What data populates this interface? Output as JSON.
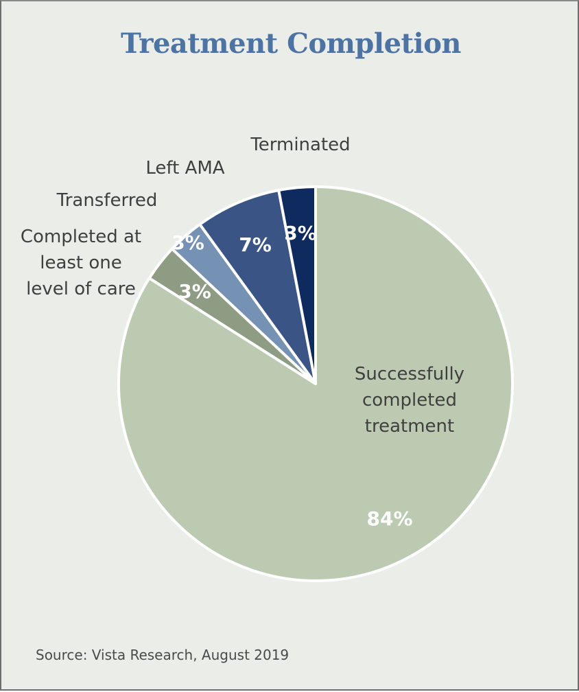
{
  "chart_data": {
    "type": "pie",
    "title": "Treatment Completion",
    "source": "Source: Vista Research, August 2019",
    "start": "12 o'clock, clockwise",
    "slices": [
      {
        "label": "Successfully completed treatment",
        "label_lines": [
          "Successfully",
          "completed",
          "treatment"
        ],
        "value": 84,
        "value_label": "84%",
        "color": "#bccab1"
      },
      {
        "label": "Completed at least one level of care",
        "label_lines": [
          "Completed at",
          "least one",
          "level of care"
        ],
        "value": 3,
        "value_label": "3%",
        "color": "#8e9c83"
      },
      {
        "label": "Transferred",
        "label_lines": [
          "Transferred"
        ],
        "value": 3,
        "value_label": "3%",
        "color": "#7591b3"
      },
      {
        "label": "Left AMA",
        "label_lines": [
          "Left AMA"
        ],
        "value": 7,
        "value_label": "7%",
        "color": "#3a5585"
      },
      {
        "label": "Terminated",
        "label_lines": [
          "Terminated"
        ],
        "value": 3,
        "value_label": "3%",
        "color": "#0f2a5e"
      }
    ],
    "legend": "none (labels placed beside slices)"
  }
}
